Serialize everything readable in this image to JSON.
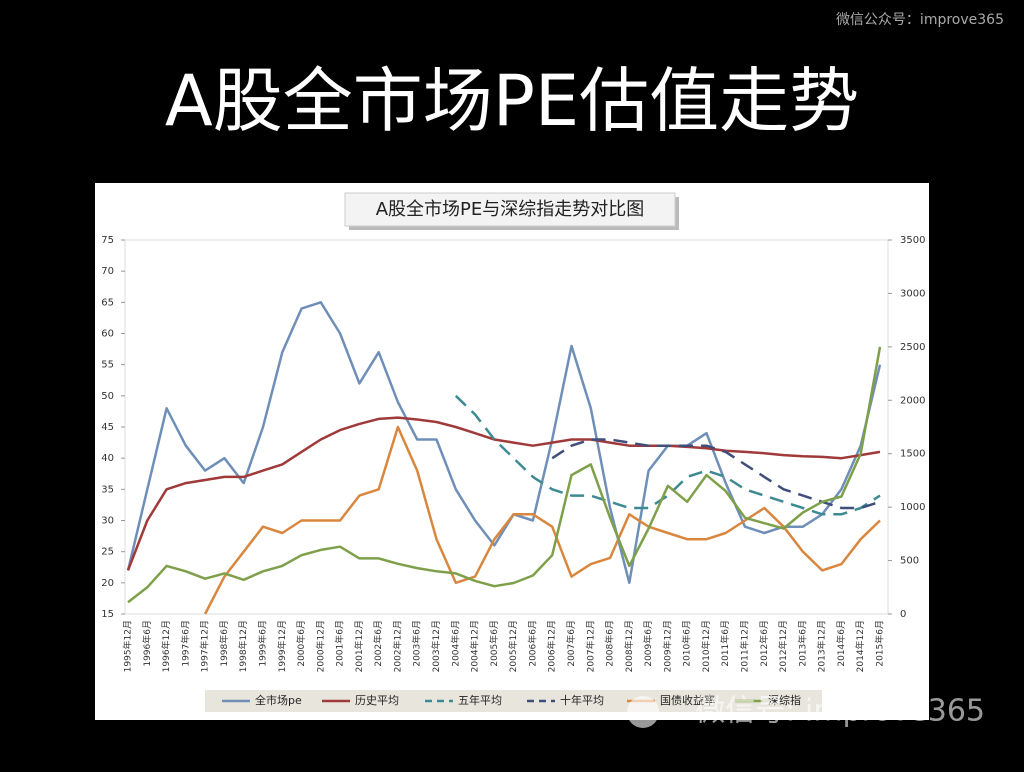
{
  "slide_title": "A股全市场PE估值走势",
  "watermark_top": "微信公众号：improve365",
  "watermark_bottom": "微信号: improve365",
  "chart_data": {
    "type": "line",
    "title": "A股全市场PE与深综指走势对比图",
    "categories": [
      "1995年12月",
      "1996年6月",
      "1996年12月",
      "1997年6月",
      "1997年12月",
      "1998年6月",
      "1998年12月",
      "1999年6月",
      "1999年12月",
      "2000年6月",
      "2000年12月",
      "2001年6月",
      "2001年12月",
      "2002年6月",
      "2002年12月",
      "2003年6月",
      "2003年12月",
      "2004年6月",
      "2004年12月",
      "2005年6月",
      "2005年12月",
      "2006年6月",
      "2006年12月",
      "2007年6月",
      "2007年12月",
      "2008年6月",
      "2008年12月",
      "2009年6月",
      "2009年12月",
      "2010年6月",
      "2010年12月",
      "2011年6月",
      "2011年12月",
      "2012年6月",
      "2012年12月",
      "2013年6月",
      "2013年12月",
      "2014年6月",
      "2014年12月",
      "2015年6月"
    ],
    "ylim": [
      15,
      75
    ],
    "yticks": [
      15,
      20,
      25,
      30,
      35,
      40,
      45,
      50,
      55,
      60,
      65,
      70,
      75
    ],
    "y2lim": [
      0,
      3500
    ],
    "y2ticks": [
      0,
      500,
      1000,
      1500,
      2000,
      2500,
      3000,
      3500
    ],
    "series": [
      {
        "name": "全市场pe",
        "color": "#6f8fb8",
        "style": "solid",
        "values": [
          22,
          35,
          48,
          42,
          38,
          40,
          36,
          45,
          57,
          64,
          65,
          60,
          52,
          57,
          49,
          43,
          43,
          35,
          30,
          26,
          31,
          30,
          43,
          58,
          48,
          32,
          20,
          38,
          42,
          42,
          44,
          36,
          29,
          28,
          29,
          29,
          31,
          35,
          42,
          55
        ]
      },
      {
        "name": "历史平均",
        "color": "#a03a3a",
        "style": "solid",
        "values": [
          22,
          30,
          35,
          36,
          36.5,
          37,
          37,
          38,
          39,
          41,
          43,
          44.5,
          45.5,
          46.3,
          46.5,
          46.2,
          45.8,
          45,
          44,
          43,
          42.5,
          42,
          42.5,
          43,
          43,
          42.5,
          42,
          42,
          42,
          41.8,
          41.6,
          41.2,
          41,
          40.8,
          40.5,
          40.3,
          40.2,
          40,
          40.5,
          41
        ]
      },
      {
        "name": "五年平均",
        "color": "#3d8a93",
        "style": "dashed",
        "values": [
          null,
          null,
          null,
          null,
          null,
          null,
          null,
          null,
          null,
          null,
          null,
          null,
          null,
          null,
          null,
          null,
          null,
          50,
          47,
          43,
          40,
          37,
          35,
          34,
          34,
          33,
          32,
          32,
          34,
          37,
          38,
          37,
          35,
          34,
          33,
          32,
          31,
          31,
          32,
          34
        ]
      },
      {
        "name": "十年平均",
        "color": "#3f4f7a",
        "style": "dashed",
        "values": [
          null,
          null,
          null,
          null,
          null,
          null,
          null,
          null,
          null,
          null,
          null,
          null,
          null,
          null,
          null,
          null,
          null,
          null,
          null,
          null,
          null,
          null,
          40,
          42,
          43,
          43,
          42.5,
          42,
          42,
          42,
          42,
          41,
          39,
          37,
          35,
          34,
          33,
          32,
          32,
          33
        ]
      },
      {
        "name": "国债收益率",
        "color": "#d9873f",
        "style": "solid",
        "values": [
          null,
          null,
          null,
          null,
          15,
          21,
          25,
          29,
          28,
          30,
          30,
          30,
          34,
          35,
          45,
          38,
          27,
          20,
          21,
          27,
          31,
          31,
          29,
          21,
          23,
          24,
          31,
          29,
          28,
          27,
          27,
          28,
          30,
          32,
          29,
          25,
          22,
          23,
          27,
          30
        ]
      },
      {
        "name": "深综指",
        "color": "#7fa04a",
        "style": "solid",
        "axis": "y2",
        "values": [
          110,
          250,
          450,
          400,
          330,
          380,
          320,
          400,
          450,
          550,
          600,
          630,
          520,
          520,
          470,
          430,
          400,
          380,
          310,
          260,
          290,
          360,
          550,
          1300,
          1400,
          900,
          450,
          800,
          1200,
          1050,
          1300,
          1150,
          900,
          850,
          800,
          950,
          1050,
          1100,
          1500,
          2500
        ]
      }
    ]
  }
}
